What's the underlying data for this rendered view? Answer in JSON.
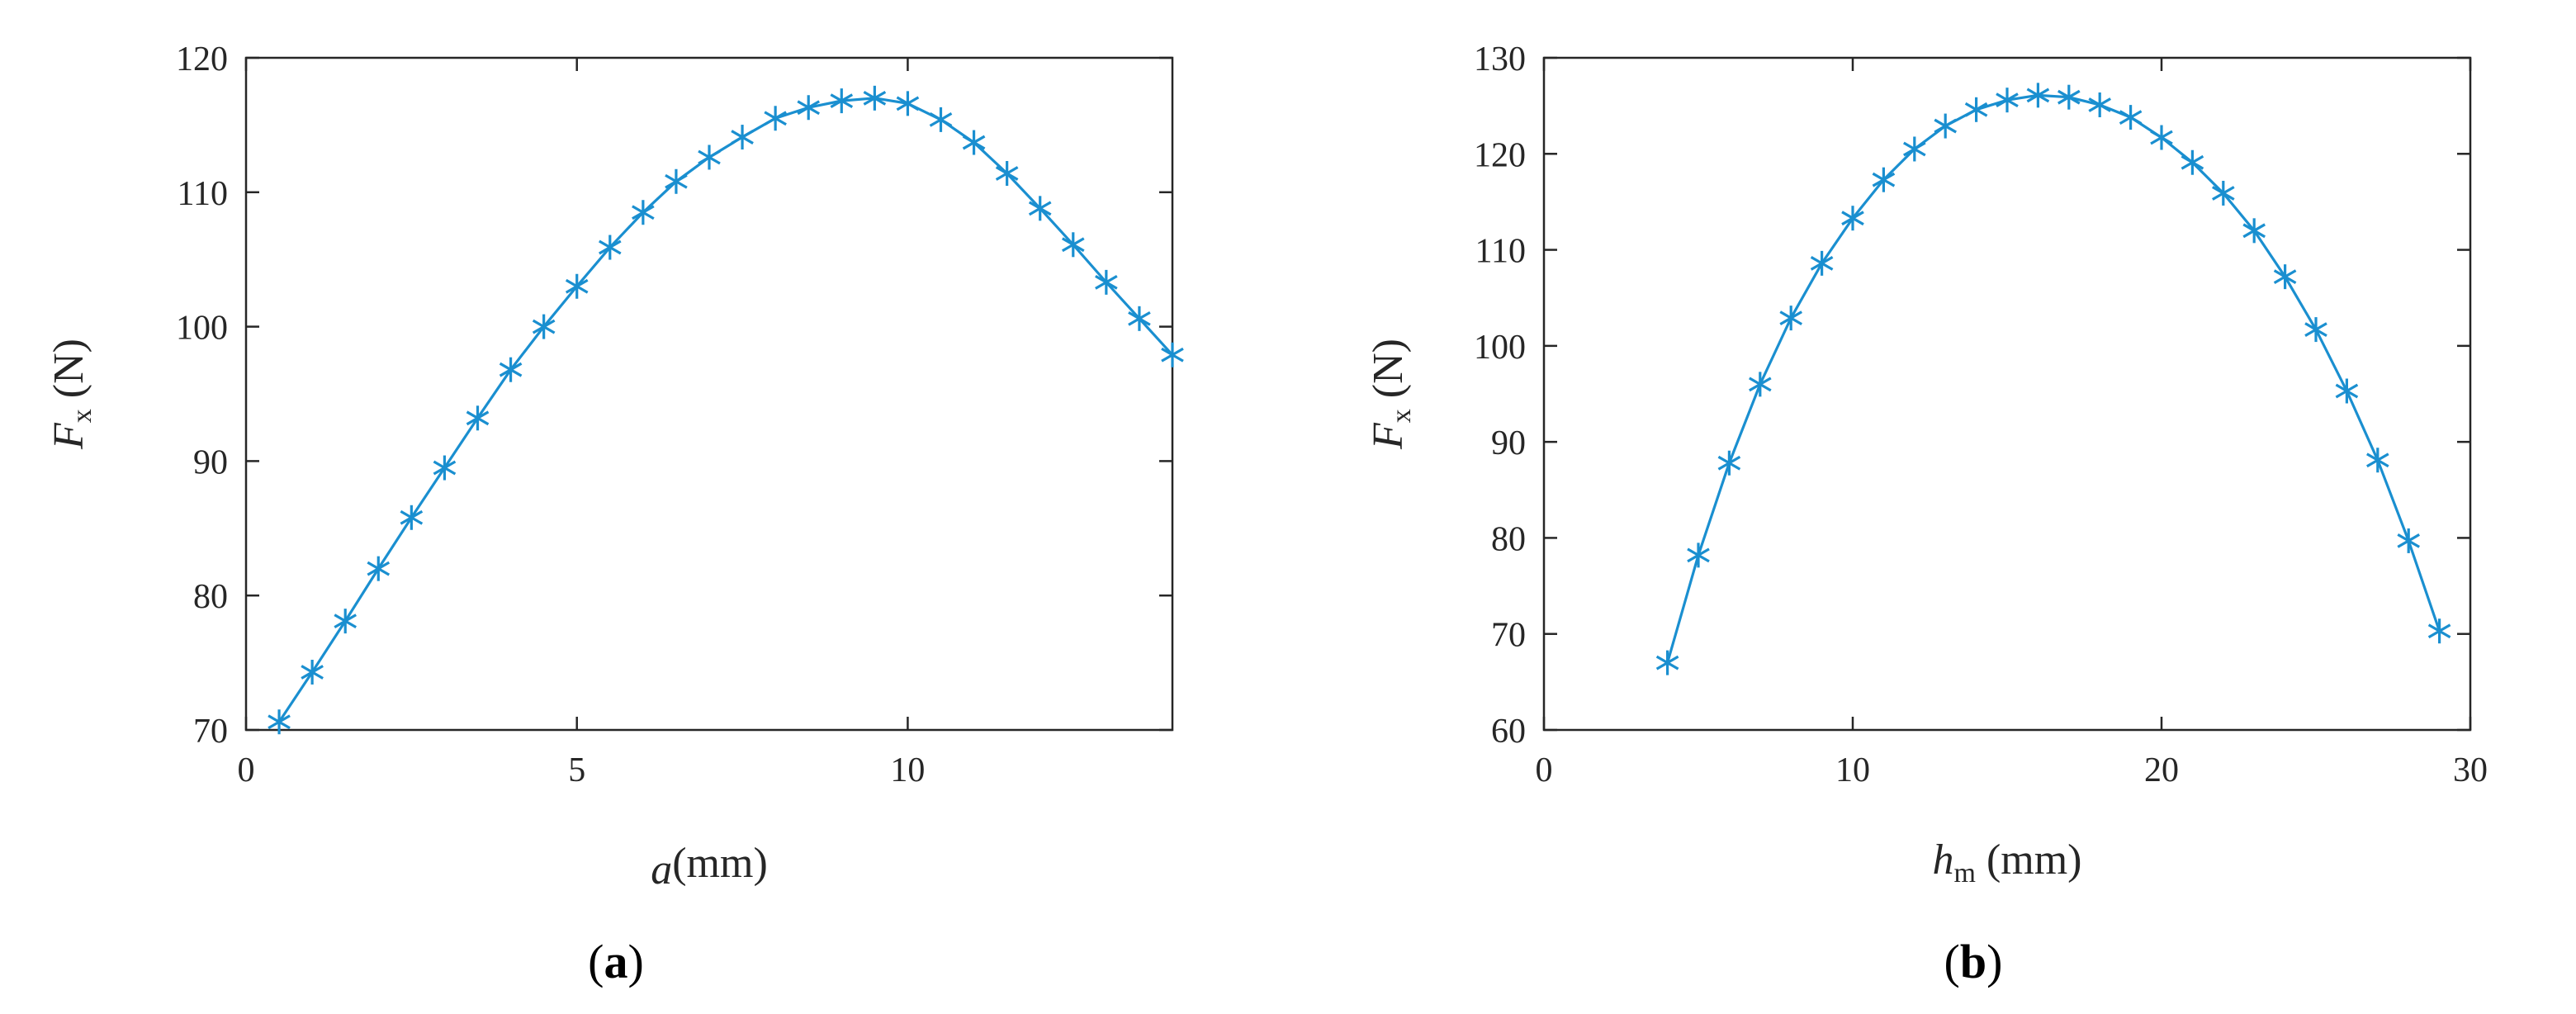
{
  "colors": {
    "series": "#1a8fd0",
    "axis": "#262626"
  },
  "chart_data": [
    {
      "type": "line",
      "panel_label": {
        "open": "(",
        "letter": "a",
        "close": ")"
      },
      "xlabel": {
        "symbol": "a",
        "sub": "",
        "unit": "(mm)"
      },
      "ylabel": {
        "symbol": "F",
        "sub": "x",
        "unit": " (N)"
      },
      "xlim": [
        0,
        14
      ],
      "ylim": [
        70,
        120
      ],
      "xticks": [
        0,
        5,
        10
      ],
      "yticks": [
        70,
        80,
        90,
        100,
        110,
        120
      ],
      "grid": false,
      "marker": "asterisk",
      "x": [
        0.5,
        1.0,
        1.5,
        2.0,
        2.5,
        3.0,
        3.5,
        4.0,
        4.5,
        5.0,
        5.5,
        6.0,
        6.5,
        7.0,
        7.5,
        8.0,
        8.5,
        9.0,
        9.5,
        10.0,
        10.5,
        11.0,
        11.5,
        12.0,
        12.5,
        13.0,
        13.5,
        14.0
      ],
      "y": [
        70.6,
        74.3,
        78.1,
        82.0,
        85.8,
        89.5,
        93.2,
        96.8,
        100.0,
        103.0,
        105.9,
        108.5,
        110.8,
        112.6,
        114.1,
        115.5,
        116.3,
        116.8,
        117.0,
        116.6,
        115.4,
        113.7,
        111.4,
        108.8,
        106.1,
        103.3,
        100.6,
        97.9
      ]
    },
    {
      "type": "line",
      "panel_label": {
        "open": "(",
        "letter": "b",
        "close": ")"
      },
      "xlabel": {
        "symbol": "h",
        "sub": "m",
        "unit": " (mm)"
      },
      "ylabel": {
        "symbol": "F",
        "sub": "x",
        "unit": " (N)"
      },
      "xlim": [
        0,
        30
      ],
      "ylim": [
        60,
        130
      ],
      "xticks": [
        0,
        10,
        20,
        30
      ],
      "yticks": [
        60,
        70,
        80,
        90,
        100,
        110,
        120,
        130
      ],
      "grid": false,
      "marker": "asterisk",
      "x": [
        4,
        5,
        6,
        7,
        8,
        9,
        10,
        11,
        12,
        13,
        14,
        15,
        16,
        17,
        18,
        19,
        20,
        21,
        22,
        23,
        24,
        25,
        26,
        27,
        28,
        29
      ],
      "y": [
        67.0,
        78.2,
        87.8,
        96.0,
        102.9,
        108.6,
        113.3,
        117.3,
        120.5,
        122.9,
        124.6,
        125.6,
        126.1,
        125.9,
        125.1,
        123.8,
        121.7,
        119.1,
        115.9,
        112.0,
        107.2,
        101.7,
        95.3,
        88.1,
        79.7,
        70.3
      ]
    }
  ]
}
